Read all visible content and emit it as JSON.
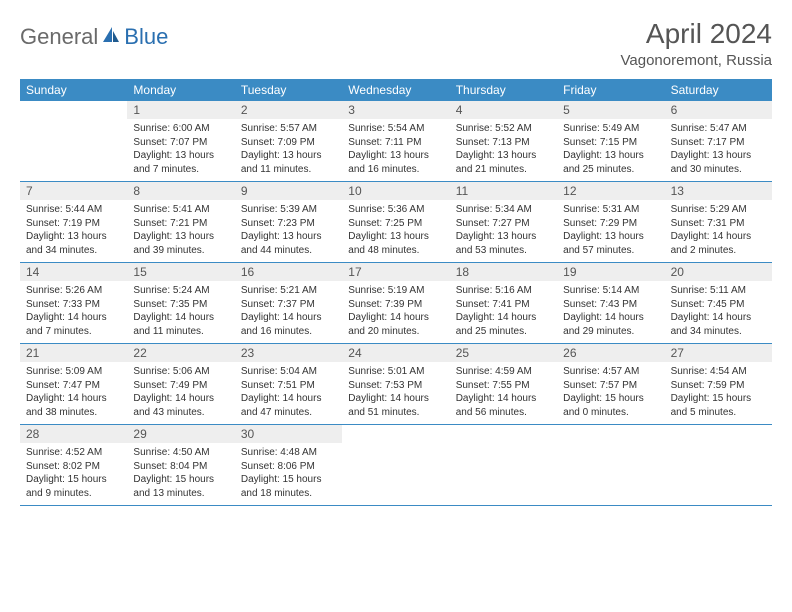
{
  "logo": {
    "general": "General",
    "blue": "Blue"
  },
  "title": "April 2024",
  "location": "Vagonoremont, Russia",
  "dayHeaders": [
    "Sunday",
    "Monday",
    "Tuesday",
    "Wednesday",
    "Thursday",
    "Friday",
    "Saturday"
  ],
  "colors": {
    "headerBg": "#3b8bc4",
    "headerText": "#ffffff",
    "dayNumBg": "#eeeeee",
    "border": "#3b8bc4",
    "bodyText": "#333333",
    "titleText": "#555555",
    "logoGray": "#6a6a6a",
    "logoBlue": "#2a6fb0"
  },
  "weeks": [
    [
      {
        "num": "",
        "sunrise": "",
        "sunset": "",
        "daylight": ""
      },
      {
        "num": "1",
        "sunrise": "Sunrise: 6:00 AM",
        "sunset": "Sunset: 7:07 PM",
        "daylight": "Daylight: 13 hours and 7 minutes."
      },
      {
        "num": "2",
        "sunrise": "Sunrise: 5:57 AM",
        "sunset": "Sunset: 7:09 PM",
        "daylight": "Daylight: 13 hours and 11 minutes."
      },
      {
        "num": "3",
        "sunrise": "Sunrise: 5:54 AM",
        "sunset": "Sunset: 7:11 PM",
        "daylight": "Daylight: 13 hours and 16 minutes."
      },
      {
        "num": "4",
        "sunrise": "Sunrise: 5:52 AM",
        "sunset": "Sunset: 7:13 PM",
        "daylight": "Daylight: 13 hours and 21 minutes."
      },
      {
        "num": "5",
        "sunrise": "Sunrise: 5:49 AM",
        "sunset": "Sunset: 7:15 PM",
        "daylight": "Daylight: 13 hours and 25 minutes."
      },
      {
        "num": "6",
        "sunrise": "Sunrise: 5:47 AM",
        "sunset": "Sunset: 7:17 PM",
        "daylight": "Daylight: 13 hours and 30 minutes."
      }
    ],
    [
      {
        "num": "7",
        "sunrise": "Sunrise: 5:44 AM",
        "sunset": "Sunset: 7:19 PM",
        "daylight": "Daylight: 13 hours and 34 minutes."
      },
      {
        "num": "8",
        "sunrise": "Sunrise: 5:41 AM",
        "sunset": "Sunset: 7:21 PM",
        "daylight": "Daylight: 13 hours and 39 minutes."
      },
      {
        "num": "9",
        "sunrise": "Sunrise: 5:39 AM",
        "sunset": "Sunset: 7:23 PM",
        "daylight": "Daylight: 13 hours and 44 minutes."
      },
      {
        "num": "10",
        "sunrise": "Sunrise: 5:36 AM",
        "sunset": "Sunset: 7:25 PM",
        "daylight": "Daylight: 13 hours and 48 minutes."
      },
      {
        "num": "11",
        "sunrise": "Sunrise: 5:34 AM",
        "sunset": "Sunset: 7:27 PM",
        "daylight": "Daylight: 13 hours and 53 minutes."
      },
      {
        "num": "12",
        "sunrise": "Sunrise: 5:31 AM",
        "sunset": "Sunset: 7:29 PM",
        "daylight": "Daylight: 13 hours and 57 minutes."
      },
      {
        "num": "13",
        "sunrise": "Sunrise: 5:29 AM",
        "sunset": "Sunset: 7:31 PM",
        "daylight": "Daylight: 14 hours and 2 minutes."
      }
    ],
    [
      {
        "num": "14",
        "sunrise": "Sunrise: 5:26 AM",
        "sunset": "Sunset: 7:33 PM",
        "daylight": "Daylight: 14 hours and 7 minutes."
      },
      {
        "num": "15",
        "sunrise": "Sunrise: 5:24 AM",
        "sunset": "Sunset: 7:35 PM",
        "daylight": "Daylight: 14 hours and 11 minutes."
      },
      {
        "num": "16",
        "sunrise": "Sunrise: 5:21 AM",
        "sunset": "Sunset: 7:37 PM",
        "daylight": "Daylight: 14 hours and 16 minutes."
      },
      {
        "num": "17",
        "sunrise": "Sunrise: 5:19 AM",
        "sunset": "Sunset: 7:39 PM",
        "daylight": "Daylight: 14 hours and 20 minutes."
      },
      {
        "num": "18",
        "sunrise": "Sunrise: 5:16 AM",
        "sunset": "Sunset: 7:41 PM",
        "daylight": "Daylight: 14 hours and 25 minutes."
      },
      {
        "num": "19",
        "sunrise": "Sunrise: 5:14 AM",
        "sunset": "Sunset: 7:43 PM",
        "daylight": "Daylight: 14 hours and 29 minutes."
      },
      {
        "num": "20",
        "sunrise": "Sunrise: 5:11 AM",
        "sunset": "Sunset: 7:45 PM",
        "daylight": "Daylight: 14 hours and 34 minutes."
      }
    ],
    [
      {
        "num": "21",
        "sunrise": "Sunrise: 5:09 AM",
        "sunset": "Sunset: 7:47 PM",
        "daylight": "Daylight: 14 hours and 38 minutes."
      },
      {
        "num": "22",
        "sunrise": "Sunrise: 5:06 AM",
        "sunset": "Sunset: 7:49 PM",
        "daylight": "Daylight: 14 hours and 43 minutes."
      },
      {
        "num": "23",
        "sunrise": "Sunrise: 5:04 AM",
        "sunset": "Sunset: 7:51 PM",
        "daylight": "Daylight: 14 hours and 47 minutes."
      },
      {
        "num": "24",
        "sunrise": "Sunrise: 5:01 AM",
        "sunset": "Sunset: 7:53 PM",
        "daylight": "Daylight: 14 hours and 51 minutes."
      },
      {
        "num": "25",
        "sunrise": "Sunrise: 4:59 AM",
        "sunset": "Sunset: 7:55 PM",
        "daylight": "Daylight: 14 hours and 56 minutes."
      },
      {
        "num": "26",
        "sunrise": "Sunrise: 4:57 AM",
        "sunset": "Sunset: 7:57 PM",
        "daylight": "Daylight: 15 hours and 0 minutes."
      },
      {
        "num": "27",
        "sunrise": "Sunrise: 4:54 AM",
        "sunset": "Sunset: 7:59 PM",
        "daylight": "Daylight: 15 hours and 5 minutes."
      }
    ],
    [
      {
        "num": "28",
        "sunrise": "Sunrise: 4:52 AM",
        "sunset": "Sunset: 8:02 PM",
        "daylight": "Daylight: 15 hours and 9 minutes."
      },
      {
        "num": "29",
        "sunrise": "Sunrise: 4:50 AM",
        "sunset": "Sunset: 8:04 PM",
        "daylight": "Daylight: 15 hours and 13 minutes."
      },
      {
        "num": "30",
        "sunrise": "Sunrise: 4:48 AM",
        "sunset": "Sunset: 8:06 PM",
        "daylight": "Daylight: 15 hours and 18 minutes."
      },
      {
        "num": "",
        "sunrise": "",
        "sunset": "",
        "daylight": ""
      },
      {
        "num": "",
        "sunrise": "",
        "sunset": "",
        "daylight": ""
      },
      {
        "num": "",
        "sunrise": "",
        "sunset": "",
        "daylight": ""
      },
      {
        "num": "",
        "sunrise": "",
        "sunset": "",
        "daylight": ""
      }
    ]
  ]
}
